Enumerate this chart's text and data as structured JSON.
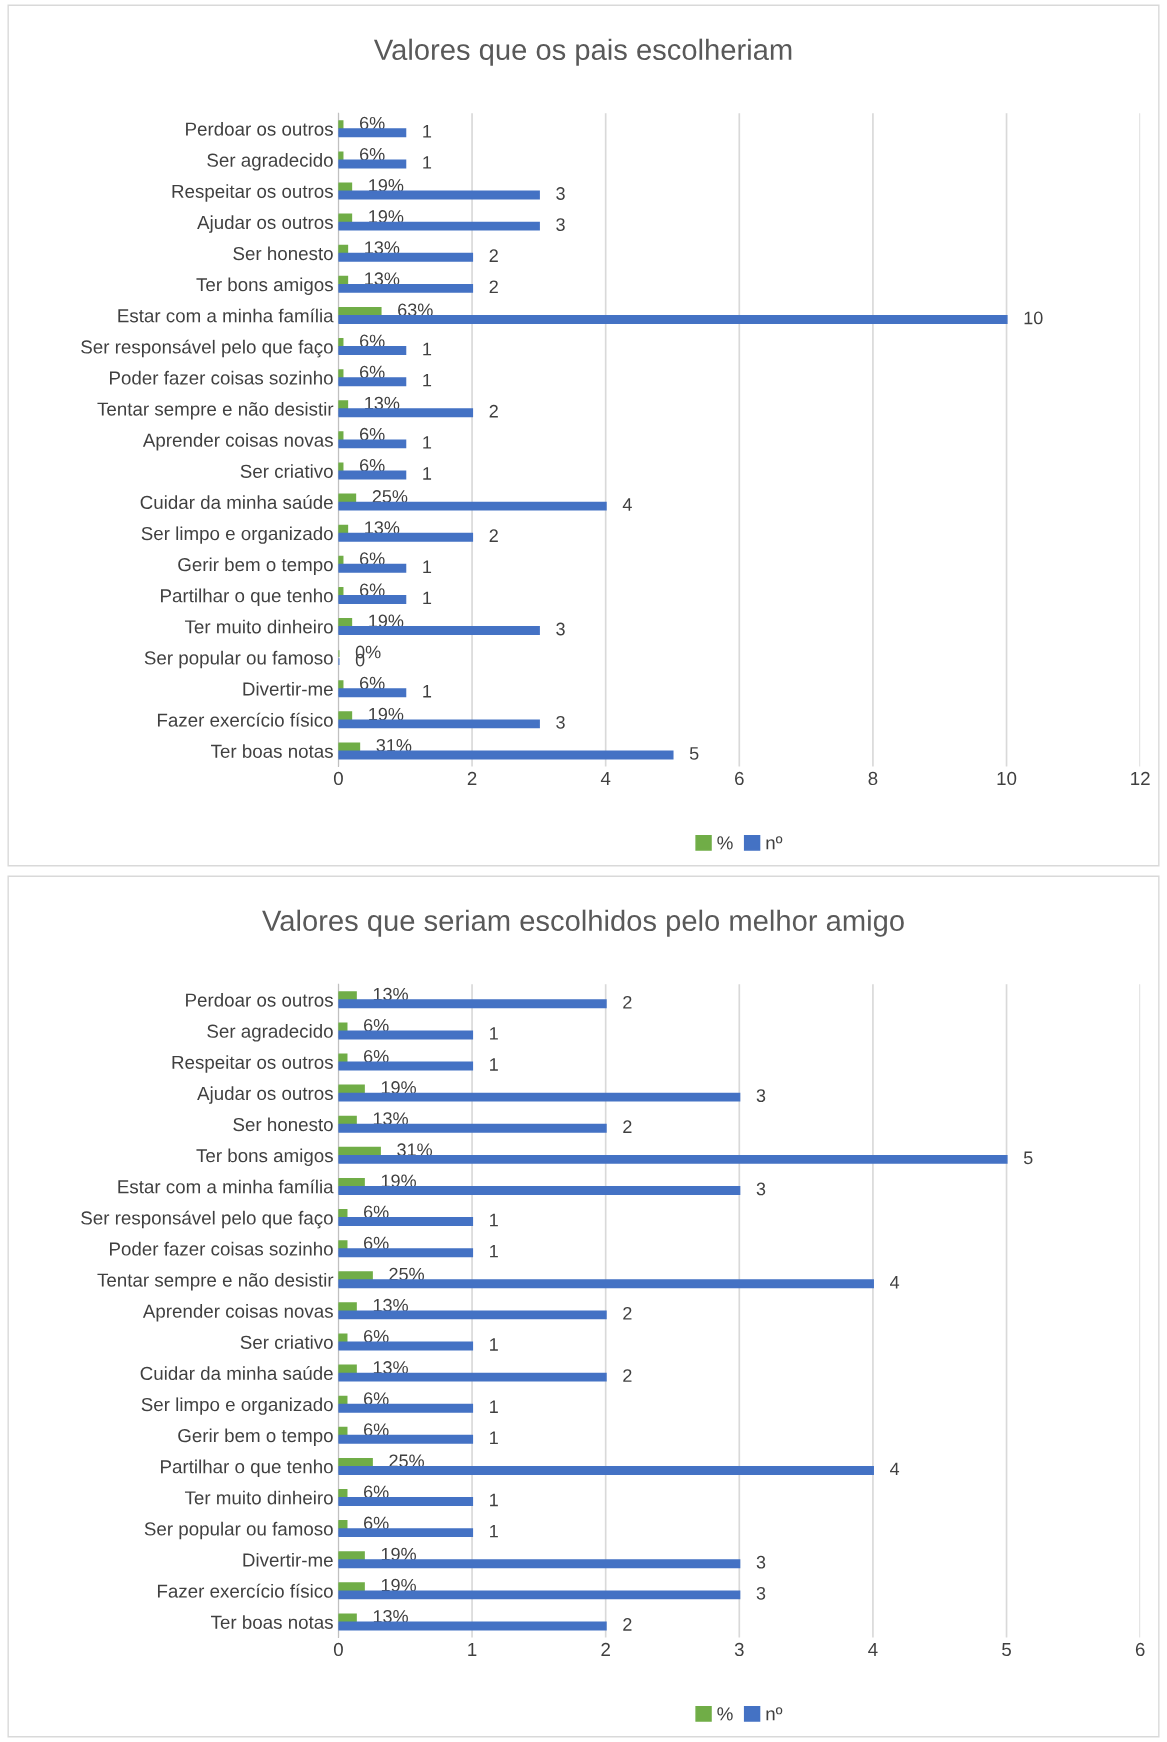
{
  "chart_data": [
    {
      "type": "bar",
      "orientation": "horizontal",
      "title": "Valores que os pais escolheriam",
      "categories": [
        "Perdoar os outros",
        "Ser agradecido",
        "Respeitar os outros",
        "Ajudar os outros",
        "Ser honesto",
        "Ter bons amigos",
        "Estar com a minha família",
        "Ser responsável pelo que faço",
        "Poder fazer coisas sozinho",
        "Tentar sempre e não desistir",
        "Aprender coisas novas",
        "Ser criativo",
        "Cuidar da minha saúde",
        "Ser limpo e organizado",
        "Gerir bem o tempo",
        "Partilhar o que tenho",
        "Ter muito dinheiro",
        "Ser popular ou famoso",
        "Divertir-me",
        "Fazer exercício físico",
        "Ter boas notas"
      ],
      "series": [
        {
          "name": "%",
          "color": "#70ad47",
          "values": [
            0.06,
            0.06,
            0.19,
            0.19,
            0.13,
            0.13,
            0.63,
            0.06,
            0.06,
            0.13,
            0.06,
            0.06,
            0.25,
            0.13,
            0.06,
            0.06,
            0.19,
            0,
            0.06,
            0.19,
            0.31
          ],
          "value_labels": [
            "6%",
            "6%",
            "19%",
            "19%",
            "13%",
            "13%",
            "63%",
            "6%",
            "6%",
            "13%",
            "6%",
            "6%",
            "25%",
            "13%",
            "6%",
            "6%",
            "19%",
            "0%",
            "6%",
            "19%",
            "31%"
          ]
        },
        {
          "name": "nº",
          "color": "#4472c4",
          "values": [
            1,
            1,
            3,
            3,
            2,
            2,
            10,
            1,
            1,
            2,
            1,
            1,
            4,
            2,
            1,
            1,
            3,
            0,
            1,
            3,
            5
          ],
          "value_labels": [
            "1",
            "1",
            "3",
            "3",
            "2",
            "2",
            "10",
            "1",
            "1",
            "2",
            "1",
            "1",
            "4",
            "2",
            "1",
            "1",
            "3",
            "0",
            "1",
            "3",
            "5"
          ]
        }
      ],
      "xlim": [
        0,
        12
      ],
      "xticks": [
        0,
        2,
        4,
        6,
        8,
        10,
        12
      ],
      "grid": "x",
      "legend": "bottom"
    },
    {
      "type": "bar",
      "orientation": "horizontal",
      "title": "Valores que seriam escolhidos pelo melhor amigo",
      "categories": [
        "Perdoar os outros",
        "Ser agradecido",
        "Respeitar os outros",
        "Ajudar os outros",
        "Ser honesto",
        "Ter bons amigos",
        "Estar com a minha família",
        "Ser responsável pelo que faço",
        "Poder fazer coisas sozinho",
        "Tentar sempre e não desistir",
        "Aprender coisas novas",
        "Ser criativo",
        "Cuidar da minha saúde",
        "Ser limpo e organizado",
        "Gerir bem o tempo",
        "Partilhar o que tenho",
        "Ter muito dinheiro",
        "Ser popular ou famoso",
        "Divertir-me",
        "Fazer exercício físico",
        "Ter boas notas"
      ],
      "series": [
        {
          "name": "%",
          "color": "#70ad47",
          "values": [
            0.13,
            0.06,
            0.06,
            0.19,
            0.13,
            0.31,
            0.19,
            0.06,
            0.06,
            0.25,
            0.13,
            0.06,
            0.13,
            0.06,
            0.06,
            0.25,
            0.06,
            0.06,
            0.19,
            0.19,
            0.13
          ],
          "value_labels": [
            "13%",
            "6%",
            "6%",
            "19%",
            "13%",
            "31%",
            "19%",
            "6%",
            "6%",
            "25%",
            "13%",
            "6%",
            "13%",
            "6%",
            "6%",
            "25%",
            "6%",
            "6%",
            "19%",
            "19%",
            "13%"
          ]
        },
        {
          "name": "nº",
          "color": "#4472c4",
          "values": [
            2,
            1,
            1,
            3,
            2,
            5,
            3,
            1,
            1,
            4,
            2,
            1,
            2,
            1,
            1,
            4,
            1,
            1,
            3,
            3,
            2
          ],
          "value_labels": [
            "2",
            "1",
            "1",
            "3",
            "2",
            "5",
            "3",
            "1",
            "1",
            "4",
            "2",
            "1",
            "2",
            "1",
            "1",
            "4",
            "1",
            "1",
            "3",
            "3",
            "2"
          ]
        }
      ],
      "xlim": [
        0,
        6
      ],
      "xticks": [
        0,
        1,
        2,
        3,
        4,
        5,
        6
      ],
      "grid": "x",
      "legend": "bottom"
    }
  ]
}
